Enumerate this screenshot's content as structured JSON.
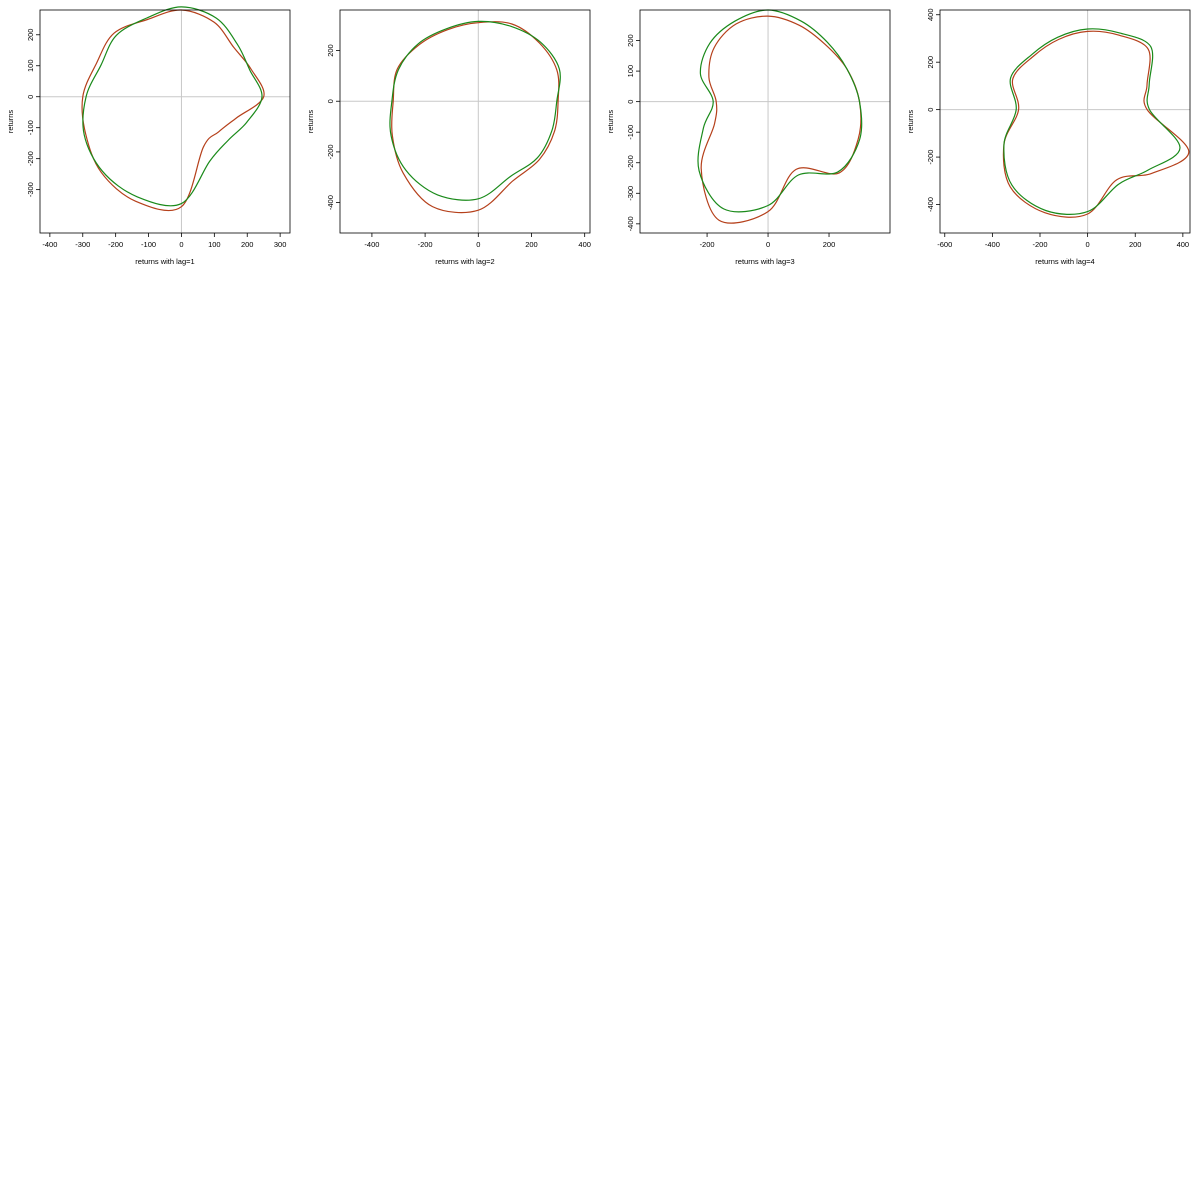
{
  "colors": {
    "series_a": "#b5401b",
    "series_b": "#1a8a1a",
    "reference_lines": "#c8c8c8"
  },
  "chart_data": [
    {
      "type": "line",
      "xlabel": "returns with lag=1",
      "ylabel": "returns",
      "x_ticks": [
        -400,
        -300,
        -200,
        -100,
        0,
        100,
        200,
        300
      ],
      "y_ticks": [
        -300,
        -200,
        -100,
        0,
        100,
        200
      ],
      "xlim": [
        -430,
        330
      ],
      "ylim": [
        -440,
        280
      ],
      "series": [
        {
          "radii": [
            280,
            260,
            225,
            230,
            250,
            180,
            160,
            175,
            355,
            365,
            345,
            315,
            300,
            280,
            290,
            270
          ]
        },
        {
          "radii": [
            290,
            275,
            240,
            225,
            245,
            215,
            200,
            225,
            345,
            350,
            340,
            320,
            290,
            265,
            280,
            275
          ]
        }
      ]
    },
    {
      "type": "line",
      "xlabel": "returns with lag=2",
      "ylabel": "returns",
      "x_ticks": [
        -400,
        -200,
        0,
        200,
        400
      ],
      "y_ticks": [
        -400,
        -200,
        0,
        200
      ],
      "xlim": [
        -520,
        420
      ],
      "ylim": [
        -520,
        360
      ],
      "series": [
        {
          "radii": [
            310,
            330,
            325,
            320,
            300,
            310,
            325,
            340,
            430,
            450,
            400,
            350,
            320,
            330,
            315,
            305
          ]
        },
        {
          "radii": [
            315,
            320,
            330,
            330,
            295,
            300,
            315,
            320,
            385,
            400,
            385,
            355,
            325,
            325,
            320,
            310
          ]
        }
      ]
    },
    {
      "type": "line",
      "xlabel": "returns with lag=3",
      "ylabel": "returns",
      "x_ticks": [
        -200,
        0,
        200
      ],
      "y_ticks": [
        -400,
        -300,
        -200,
        -100,
        0,
        100,
        200
      ],
      "xlim": [
        -420,
        400
      ],
      "ylim": [
        -430,
        300
      ],
      "series": [
        {
          "radii": [
            280,
            270,
            265,
            280,
            300,
            320,
            330,
            240,
            360,
            420,
            310,
            190,
            170,
            210,
            250,
            275
          ]
        },
        {
          "radii": [
            300,
            285,
            275,
            280,
            300,
            325,
            325,
            260,
            340,
            380,
            320,
            230,
            180,
            240,
            270,
            285
          ]
        }
      ]
    },
    {
      "type": "line",
      "xlabel": "returns with lag=4",
      "ylabel": "returns",
      "x_ticks": [
        -600,
        -400,
        -200,
        0,
        200,
        400
      ],
      "y_ticks": [
        -400,
        -200,
        0,
        200,
        400
      ],
      "xlim": [
        -620,
        430
      ],
      "ylim": [
        -520,
        420
      ],
      "series": [
        {
          "radii": [
            330,
            340,
            360,
            270,
            250,
            460,
            380,
            320,
            440,
            470,
            460,
            380,
            290,
            340,
            320,
            320
          ]
        },
        {
          "radii": [
            340,
            350,
            375,
            280,
            260,
            420,
            360,
            340,
            430,
            460,
            450,
            380,
            300,
            350,
            330,
            330
          ]
        }
      ]
    }
  ]
}
